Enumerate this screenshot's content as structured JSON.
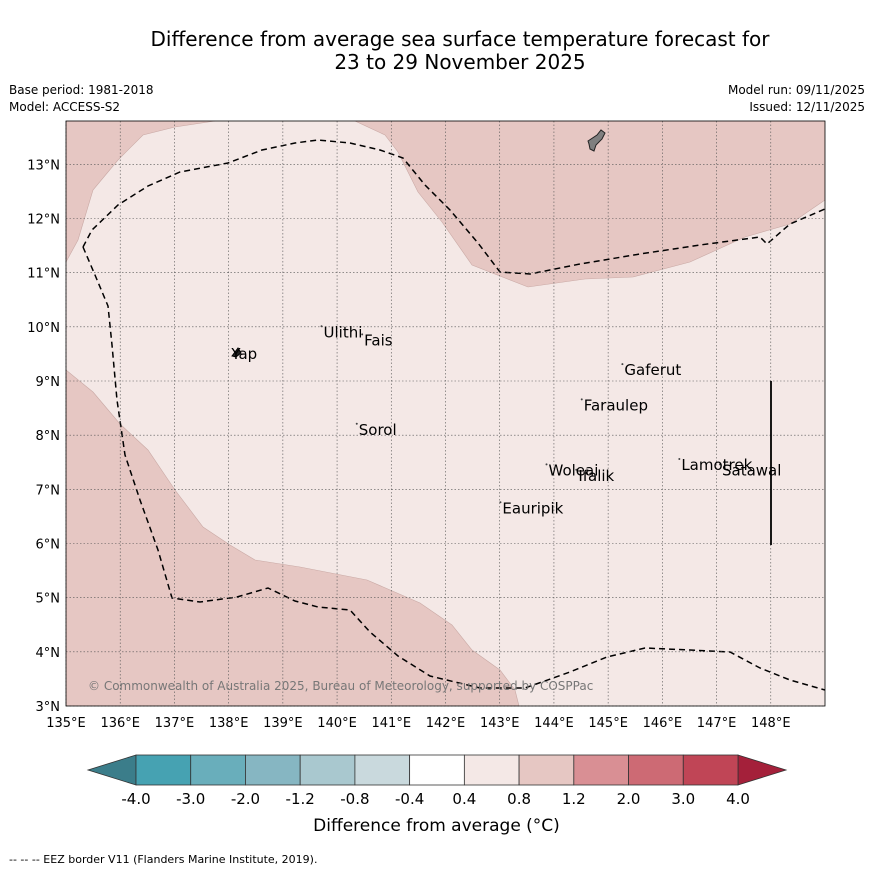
{
  "title": {
    "line1": "Difference from average sea surface temperature forecast for",
    "line2": "23 to 29 November 2025"
  },
  "meta": {
    "base_period": "Base period: 1981-2018",
    "model": "Model: ACCESS-S2",
    "model_run": "Model run: 09/11/2025",
    "issued": "Issued: 12/11/2025"
  },
  "map": {
    "lon_ticks": [
      "135°E",
      "136°E",
      "137°E",
      "138°E",
      "139°E",
      "140°E",
      "141°E",
      "142°E",
      "143°E",
      "144°E",
      "145°E",
      "146°E",
      "147°E",
      "148°E"
    ],
    "lat_ticks": [
      "3°N",
      "4°N",
      "5°N",
      "6°N",
      "7°N",
      "8°N",
      "9°N",
      "10°N",
      "11°N",
      "12°N",
      "13°N"
    ],
    "lon_values": [
      135,
      136,
      137,
      138,
      139,
      140,
      141,
      142,
      143,
      144,
      145,
      146,
      147,
      148
    ],
    "lat_values": [
      3,
      4,
      5,
      6,
      7,
      8,
      9,
      10,
      11,
      12,
      13
    ],
    "lon_range": [
      135,
      149
    ],
    "lat_range": [
      3,
      13.8
    ],
    "copyright": "© Commonwealth of Australia 2025, Bureau of Meteorology, supported by COSPPac",
    "places": [
      {
        "name": "Yap",
        "lon": 138.05,
        "lat": 9.5
      },
      {
        "name": "Ulithi",
        "lon": 139.75,
        "lat": 9.9
      },
      {
        "name": "Fais",
        "lon": 140.5,
        "lat": 9.75
      },
      {
        "name": "Gaferut",
        "lon": 145.3,
        "lat": 9.2
      },
      {
        "name": "Faraulep",
        "lon": 144.55,
        "lat": 8.55
      },
      {
        "name": "Sorol",
        "lon": 140.4,
        "lat": 8.1
      },
      {
        "name": "Lamotrek",
        "lon": 146.35,
        "lat": 7.45
      },
      {
        "name": "Satawal",
        "lon": 147.1,
        "lat": 7.35
      },
      {
        "name": "Woleai",
        "lon": 143.9,
        "lat": 7.35
      },
      {
        "name": "Ifalik",
        "lon": 144.45,
        "lat": 7.25
      },
      {
        "name": "Eauripik",
        "lon": 143.05,
        "lat": 6.65
      }
    ]
  },
  "colorbar": {
    "ticks": [
      "-4.0",
      "-3.0",
      "-2.0",
      "-1.2",
      "-0.8",
      "-0.4",
      "0.4",
      "0.8",
      "1.2",
      "2.0",
      "3.0",
      "4.0"
    ],
    "colors": [
      "#46a2b2",
      "#69aebb",
      "#86b6c2",
      "#a9c8cf",
      "#c9d9dd",
      "#ffffff",
      "#f4e8e6",
      "#e6c7c3",
      "#d98f94",
      "#cd6a74",
      "#c04556"
    ],
    "under_color": "#3b7d8a",
    "over_color": "#a4203a",
    "label": "Difference from average (°C)"
  },
  "footer": "--  --  -- EEZ border V11 (Flanders Marine Institute, 2019)."
}
